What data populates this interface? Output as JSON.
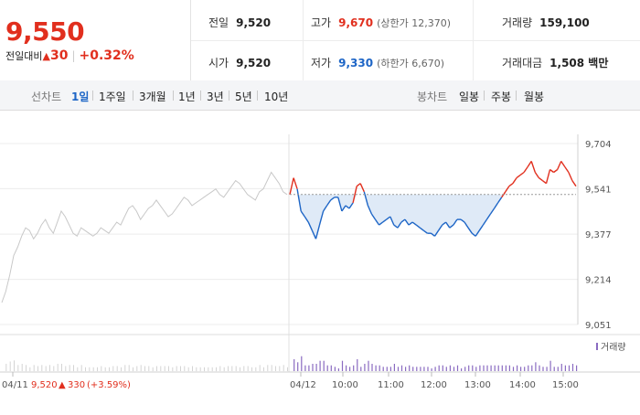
{
  "price": {
    "current": "9,550",
    "change_label": "전일대비",
    "change_arrow": "▲",
    "change_value": "30",
    "change_pct": "+0.32%"
  },
  "stats": {
    "prev_close_label": "전일",
    "prev_close": "9,520",
    "open_label": "시가",
    "open": "9,520",
    "high_label": "고가",
    "high": "9,670",
    "upper_limit": "(상한가 12,370)",
    "low_label": "저가",
    "low": "9,330",
    "lower_limit": "(하한가 6,670)",
    "volume_label": "거래량",
    "volume": "159,100",
    "amount_label": "거래대금",
    "amount": "1,508 백만"
  },
  "periods": {
    "line_label": "선차트",
    "line_items": [
      "1일",
      "1주일",
      "3개월",
      "1년",
      "3년",
      "5년",
      "10년"
    ],
    "active": "1일",
    "candle_label": "봉차트",
    "candle_items": [
      "일봉",
      "주봉",
      "월봉"
    ]
  },
  "chart_data": {
    "type": "line",
    "y_ticks": [
      "9,704",
      "9,541",
      "9,377",
      "9,214",
      "9,051"
    ],
    "ylim": [
      9051,
      9704
    ],
    "reference_price": 9520,
    "x_ticks": [
      "04/11",
      "04/12",
      "10:00",
      "11:00",
      "12:00",
      "13:00",
      "14:00",
      "15:00"
    ],
    "prev_day_label": "04/11",
    "prev_day_summary": {
      "price": "9,520",
      "arrow": "▲",
      "change": "330",
      "pct": "(+3.59%)"
    },
    "volume_legend": "거래량",
    "series": [
      {
        "values_prev_day": [
          9130,
          9170,
          9230,
          9300,
          9330,
          9370,
          9400,
          9390,
          9360,
          9380,
          9410,
          9430,
          9400,
          9380,
          9420,
          9460,
          9440,
          9410,
          9380,
          9370,
          9400,
          9390,
          9380,
          9370,
          9380,
          9400,
          9390,
          9380,
          9400,
          9420,
          9410,
          9440,
          9470,
          9480,
          9460,
          9430,
          9450,
          9470,
          9480,
          9500,
          9480,
          9460,
          9440,
          9450,
          9470,
          9490,
          9510,
          9500,
          9480,
          9490,
          9500,
          9510,
          9520,
          9530,
          9540,
          9520,
          9510,
          9530,
          9550,
          9570,
          9560,
          9540,
          9520,
          9510,
          9500,
          9530,
          9540,
          9570,
          9600,
          9580,
          9560,
          9530,
          9520
        ]
      },
      {
        "values_today": [
          9520,
          9580,
          9540,
          9460,
          9440,
          9420,
          9390,
          9360,
          9410,
          9460,
          9480,
          9500,
          9510,
          9510,
          9460,
          9480,
          9470,
          9490,
          9550,
          9560,
          9530,
          9480,
          9450,
          9430,
          9410,
          9420,
          9430,
          9440,
          9410,
          9400,
          9420,
          9430,
          9410,
          9420,
          9410,
          9400,
          9390,
          9380,
          9380,
          9370,
          9390,
          9410,
          9420,
          9400,
          9410,
          9430,
          9430,
          9420,
          9400,
          9380,
          9370,
          9390,
          9410,
          9430,
          9450,
          9470,
          9490,
          9510,
          9530,
          9550,
          9560,
          9580,
          9590,
          9600,
          9620,
          9640,
          9600,
          9580,
          9570,
          9560,
          9610,
          9600,
          9610,
          9640,
          9620,
          9600,
          9570,
          9550
        ]
      }
    ]
  }
}
